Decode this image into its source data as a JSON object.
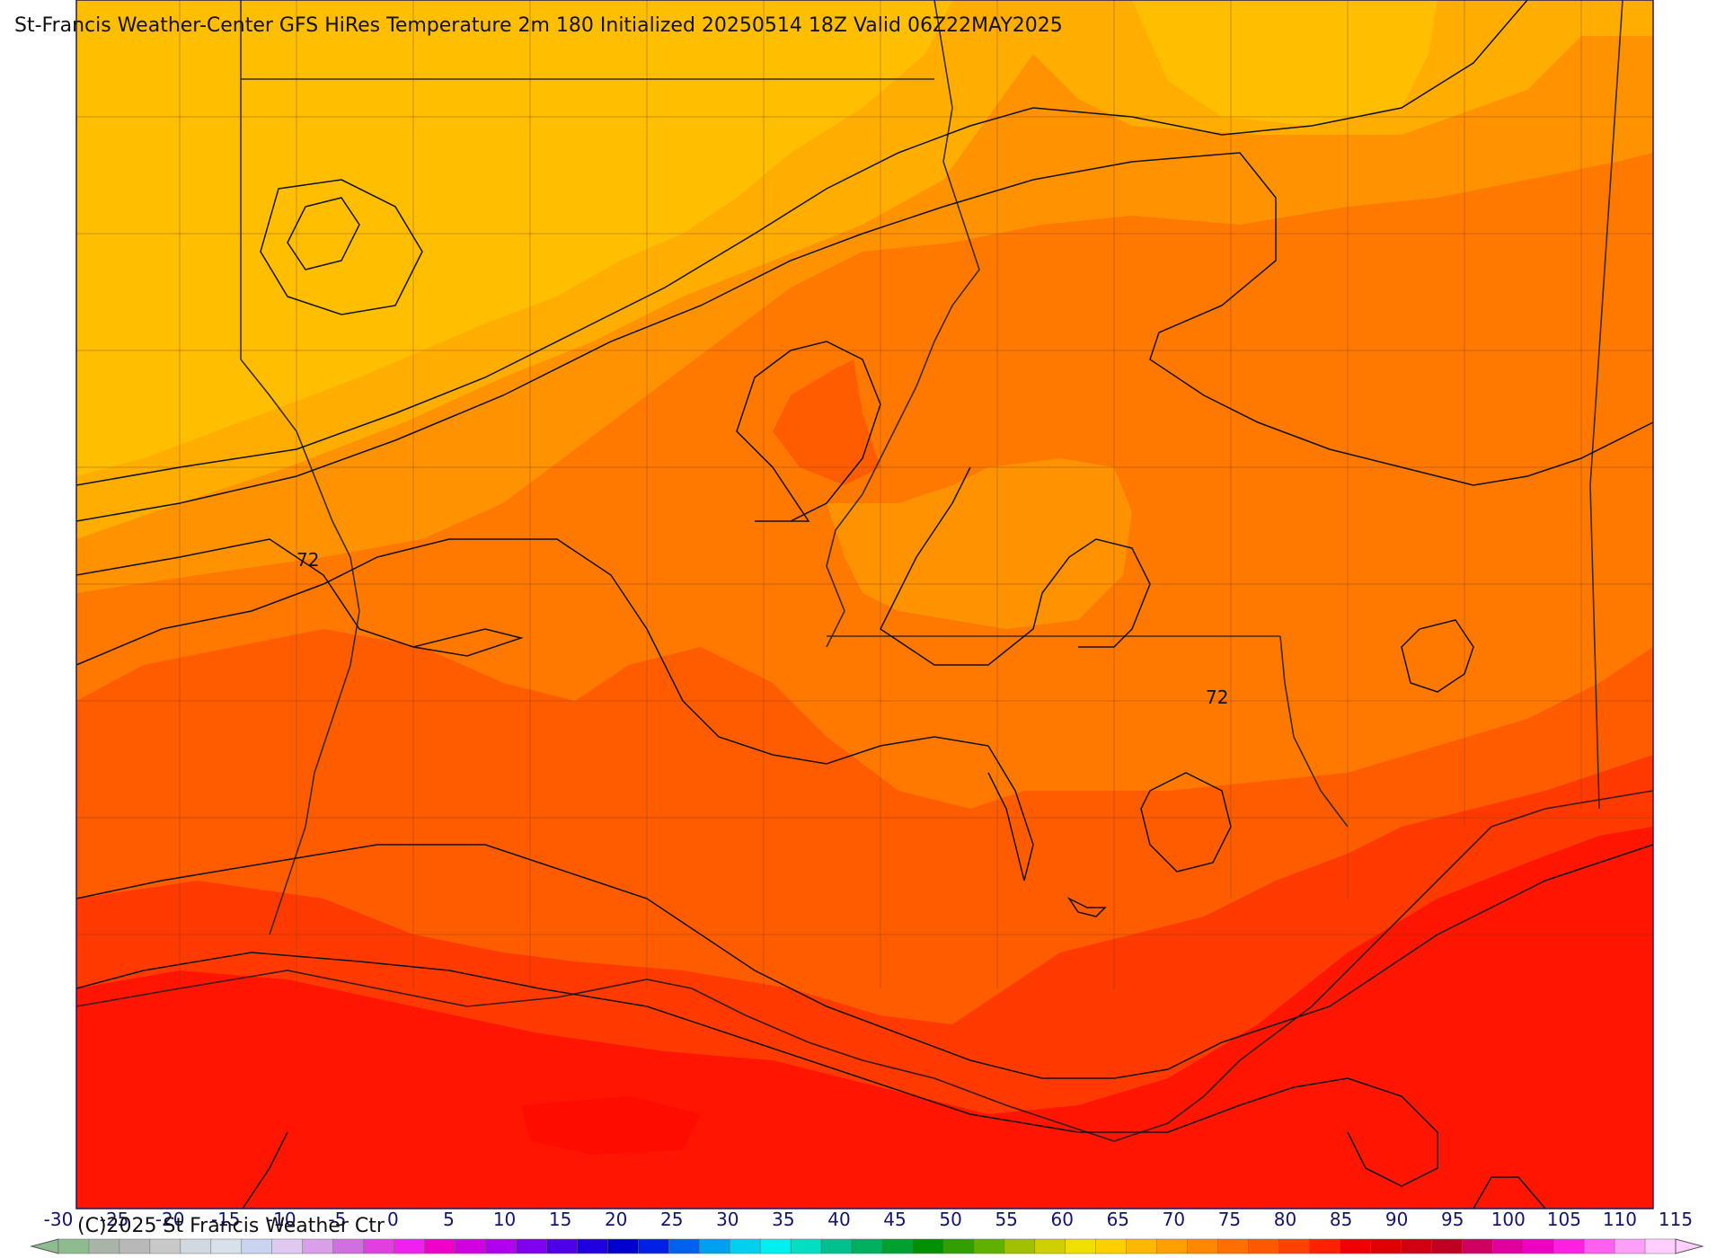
{
  "title": "St-Francis Weather-Center GFS HiRes Temperature 2m  180 Initialized 20250514 18Z Valid 06Z22MAY2025",
  "copyright": "(C)2025 St Francis Weather Ctr",
  "contour_labels": [
    "72",
    "72"
  ],
  "colorbar": {
    "ticks": [
      "-30",
      "-25",
      "-20",
      "-15",
      "-10",
      "-5",
      "0",
      "5",
      "10",
      "15",
      "20",
      "25",
      "30",
      "35",
      "40",
      "45",
      "50",
      "55",
      "60",
      "65",
      "70",
      "75",
      "80",
      "85",
      "90",
      "95",
      "100",
      "105",
      "110",
      "115"
    ],
    "colors": [
      "#8fbc8f",
      "#a8b4a8",
      "#b8b8b8",
      "#c8c8c8",
      "#d0d8e0",
      "#d8e0ec",
      "#c8d4f0",
      "#e0c8f0",
      "#d8a0e8",
      "#d070e0",
      "#e040e0",
      "#f020f0",
      "#f000c8",
      "#d000e0",
      "#b000f0",
      "#8000f0",
      "#5000e8",
      "#2000e0",
      "#0000d0",
      "#0020e8",
      "#0060f0",
      "#00a0f0",
      "#00d0f0",
      "#00f0f0",
      "#00e0c0",
      "#00c090",
      "#00b060",
      "#00a030",
      "#009000",
      "#30a000",
      "#60b000",
      "#a0c000",
      "#d0d000",
      "#f0e000",
      "#ffd000",
      "#ffb800",
      "#ffa000",
      "#ff8800",
      "#ff7000",
      "#ff5800",
      "#ff4000",
      "#ff2000",
      "#f00000",
      "#e00000",
      "#d00010",
      "#c00020",
      "#d00060",
      "#e000a0",
      "#f000c0",
      "#ff20e0",
      "#ff60f0",
      "#ffa0f8",
      "#ffd0ff"
    ]
  },
  "shading_colors": {
    "t50": "#ffbe00",
    "t55": "#ffae00",
    "t60": "#ff9200",
    "t65": "#ff7800",
    "t70": "#ff5c00",
    "t75": "#ff3a00",
    "t80": "#ff1500"
  }
}
